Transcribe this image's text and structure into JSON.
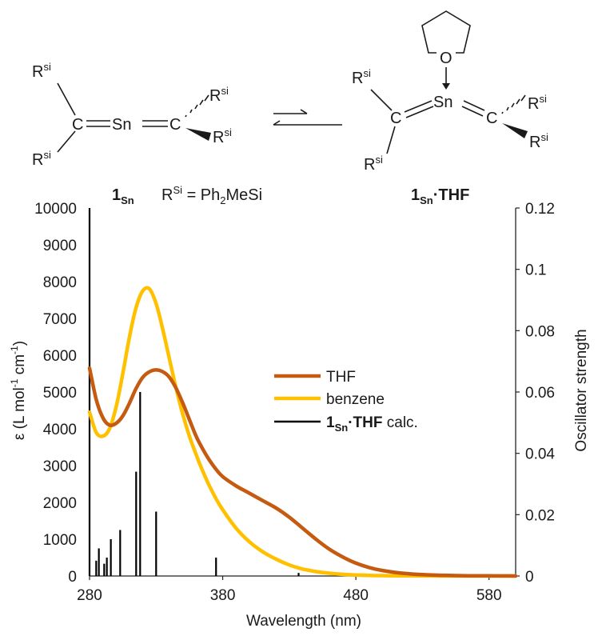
{
  "scheme": {
    "left_molecule": {
      "substituent": "R",
      "substituent_sup": "si",
      "carbon": "C",
      "tin": "Sn",
      "label_main": "1",
      "label_sub": "Sn",
      "definition_r": "R",
      "definition_sup": "Si",
      "definition_eq": " = Ph",
      "definition_sub": "2",
      "definition_rest": "MeSi"
    },
    "right_molecule": {
      "substituent": "R",
      "substituent_sup": "si",
      "carbon": "C",
      "tin": "Sn",
      "oxygen": "O",
      "label_main": "1",
      "label_sub": "Sn",
      "label_suffix": "·THF"
    }
  },
  "chart_data": {
    "type": "line",
    "xlabel": "Wavelength (nm)",
    "ylabel_main": "ε (L mol",
    "ylabel_sup1": "-1",
    "ylabel_mid": " cm",
    "ylabel_sup2": "-1",
    "ylabel_end": ")",
    "y2label": "Oscillator strength",
    "xlim": [
      280,
      600
    ],
    "ylim": [
      0,
      10000
    ],
    "y2lim": [
      0,
      0.12
    ],
    "x_ticks": [
      280,
      380,
      480,
      580
    ],
    "y_ticks": [
      0,
      1000,
      2000,
      3000,
      4000,
      5000,
      6000,
      7000,
      8000,
      9000,
      10000
    ],
    "y2_ticks": [
      "0",
      "0.02",
      "0.04",
      "0.06",
      "0.08",
      "0.1",
      "0.12"
    ],
    "legend_position": "center-right",
    "series": [
      {
        "name": "THF",
        "color": "#C55A11",
        "x": [
          280,
          285,
          290,
          295,
          300,
          305,
          310,
          315,
          320,
          325,
          330,
          335,
          340,
          345,
          350,
          355,
          360,
          365,
          370,
          375,
          380,
          390,
          400,
          410,
          420,
          430,
          440,
          450,
          460,
          470,
          480,
          490,
          500,
          510,
          520,
          530,
          540,
          550,
          560,
          570,
          580,
          590,
          600
        ],
        "y": [
          5650,
          4800,
          4300,
          4100,
          4150,
          4350,
          4700,
          5100,
          5400,
          5550,
          5600,
          5550,
          5400,
          5100,
          4700,
          4250,
          3800,
          3450,
          3150,
          2900,
          2700,
          2450,
          2250,
          2050,
          1850,
          1600,
          1300,
          1000,
          730,
          520,
          350,
          230,
          150,
          95,
          60,
          38,
          24,
          15,
          9,
          6,
          4,
          2,
          1
        ]
      },
      {
        "name": "benzene",
        "color": "#FFC000",
        "x": [
          280,
          285,
          290,
          295,
          300,
          305,
          310,
          315,
          320,
          325,
          330,
          335,
          340,
          345,
          350,
          355,
          360,
          365,
          370,
          375,
          380,
          390,
          400,
          410,
          420,
          430,
          440,
          450,
          460,
          470,
          480,
          490,
          500,
          510,
          520,
          530,
          540,
          550,
          560,
          570,
          580,
          590,
          600
        ],
        "y": [
          4450,
          3900,
          3800,
          4000,
          4600,
          5500,
          6500,
          7300,
          7750,
          7800,
          7400,
          6700,
          5900,
          5100,
          4400,
          3800,
          3300,
          2850,
          2450,
          2100,
          1800,
          1300,
          930,
          660,
          460,
          300,
          190,
          120,
          75,
          45,
          28,
          17,
          10,
          6,
          4,
          2,
          1,
          1,
          0,
          0,
          0,
          0,
          0
        ]
      }
    ],
    "sticks": {
      "name_main": "1",
      "name_sub": "Sn",
      "name_bold": "·THF",
      "name_rest": " calc.",
      "color": "#000000",
      "axis": "secondary",
      "x": [
        280,
        285,
        287,
        291,
        293,
        296,
        303,
        315,
        318,
        330,
        375,
        437
      ],
      "y": [
        0.12,
        0.005,
        0.009,
        0.004,
        0.006,
        0.012,
        0.015,
        0.034,
        0.06,
        0.021,
        0.006,
        0.001
      ]
    }
  }
}
